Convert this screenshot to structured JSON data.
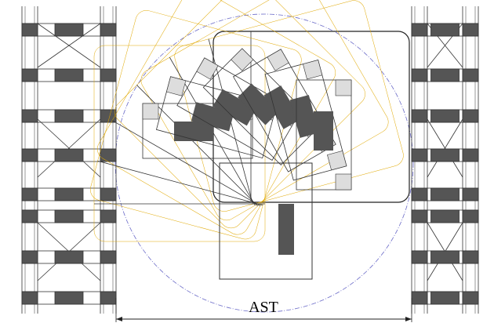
{
  "dimension": {
    "label": "AST"
  }
}
